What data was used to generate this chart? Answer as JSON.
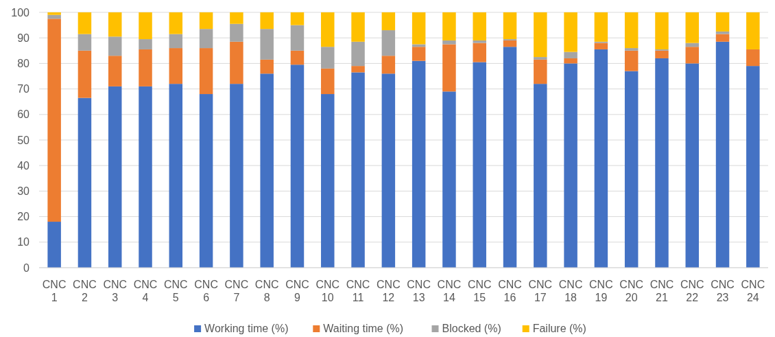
{
  "chart_data": {
    "type": "bar",
    "stacked": true,
    "categories": [
      "CNC 1",
      "CNC 2",
      "CNC 3",
      "CNC 4",
      "CNC 5",
      "CNC 6",
      "CNC 7",
      "CNC 8",
      "CNC 9",
      "CNC 10",
      "CNC 11",
      "CNC 12",
      "CNC 13",
      "CNC 14",
      "CNC 15",
      "CNC 16",
      "CNC 17",
      "CNC 18",
      "CNC 19",
      "CNC 20",
      "CNC 21",
      "CNC 22",
      "CNC 23",
      "CNC 24"
    ],
    "series": [
      {
        "name": "Working time (%)",
        "color": "#4472c4",
        "values": [
          18,
          66.5,
          71,
          71,
          72,
          68,
          72,
          76,
          79.5,
          68,
          76.5,
          76,
          81,
          69,
          80.5,
          86.5,
          72,
          80,
          85.5,
          77,
          82,
          80,
          88.5,
          79
        ]
      },
      {
        "name": "Waiting time (%)",
        "color": "#ed7d31",
        "values": [
          79.5,
          18.5,
          12,
          14.5,
          14,
          18,
          16.5,
          5.5,
          5.5,
          10,
          2.5,
          7,
          5.5,
          18.5,
          7.5,
          2.5,
          9.5,
          2,
          2.5,
          8,
          3,
          6.5,
          3,
          6.5
        ]
      },
      {
        "name": "Blocked (%)",
        "color": "#a5a5a5",
        "values": [
          1.5,
          6.5,
          7.5,
          4,
          5.5,
          7.5,
          7,
          12,
          10,
          8.5,
          9.5,
          10,
          1,
          1.5,
          1,
          0.5,
          1,
          2.5,
          0.5,
          1,
          0.5,
          1.5,
          1,
          0
        ]
      },
      {
        "name": "Failure (%)",
        "color": "#ffc000",
        "values": [
          1,
          8.5,
          9.5,
          10.5,
          8.5,
          6.5,
          4.5,
          6.5,
          5,
          13.5,
          11.5,
          7,
          12.5,
          11,
          11,
          10.5,
          17.5,
          15.5,
          11.5,
          14,
          14.5,
          12,
          7.5,
          14.5
        ]
      }
    ],
    "ylim": [
      0,
      100
    ],
    "yticks": [
      0,
      10,
      20,
      30,
      40,
      50,
      60,
      70,
      80,
      90,
      100
    ],
    "grid": "y",
    "legend": "bottom"
  }
}
